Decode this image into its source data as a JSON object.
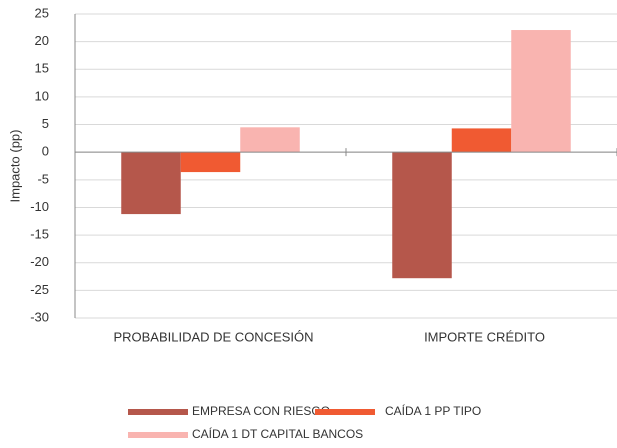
{
  "chart_data": {
    "type": "bar",
    "y_label": "Impacto (pp)",
    "categories": [
      "PROBABILIDAD DE CONCESIÓN",
      "IMPORTE CRÉDITO"
    ],
    "series": [
      {
        "name": "EMPRESA CON RIESGO",
        "color": "#b5574b",
        "values": [
          -11.2,
          -22.8
        ]
      },
      {
        "name": "CAÍDA 1 PP TIPO",
        "color": "#f05a32",
        "values": [
          -3.6,
          4.3
        ]
      },
      {
        "name": "CAÍDA 1 DT CAPITAL BANCOS",
        "color": "#f9b4b0",
        "values": [
          4.5,
          22.1
        ]
      }
    ],
    "ylim": [
      -30,
      25
    ],
    "yticks": [
      -30,
      -25,
      -20,
      -15,
      -10,
      -5,
      0,
      5,
      10,
      15,
      20,
      25
    ],
    "grid": true
  }
}
